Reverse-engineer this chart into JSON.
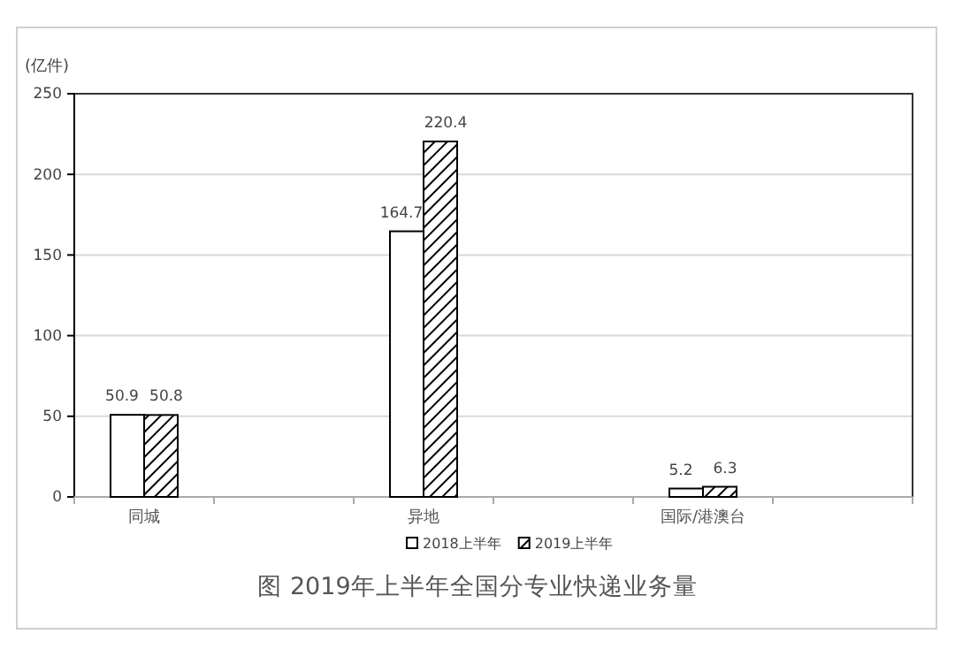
{
  "chart_data": {
    "type": "bar",
    "title": "图 2019年上半年全国分专业快递业务量",
    "ylabel": "(亿件)",
    "categories": [
      "同城",
      null,
      "异地",
      null,
      "国际/港澳台",
      null
    ],
    "series": [
      {
        "name": "2018上半年",
        "color": "#ffffff",
        "values": [
          50.9,
          null,
          164.7,
          null,
          5.2,
          null
        ]
      },
      {
        "name": "2019上半年",
        "color": "#000000",
        "values": [
          50.8,
          null,
          220.4,
          null,
          6.3,
          null
        ]
      }
    ],
    "ylim": [
      0,
      250
    ],
    "yticks": [
      0,
      50,
      100,
      150,
      200,
      250
    ],
    "grid": "y",
    "legend": "bottom",
    "data_labels": true
  }
}
